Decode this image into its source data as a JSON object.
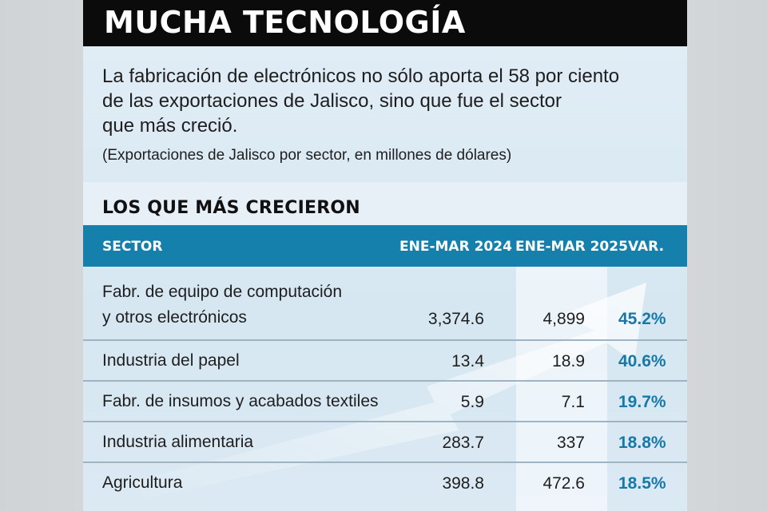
{
  "title": "MUCHA TECNOLOGÍA",
  "intro": {
    "lines": [
      "La fabricación de electrónicos no sólo aporta el 58 por ciento",
      "de las exportaciones de Jalisco, sino que fue el sector",
      "que más creció."
    ],
    "unit_note": "(Exportaciones de Jalisco por sector, en millones de dólares)"
  },
  "section_title": "LOS QUE MÁS CRECIERON",
  "table": {
    "headers": {
      "sector": "SECTOR",
      "col_2024": "ENE-MAR 2024",
      "col_2025": "ENE-MAR 2025",
      "var": "VAR."
    },
    "rows": [
      {
        "sector_line1": "Fabr. de equipo de computación",
        "sector_line2": "y otros electrónicos",
        "v2024": "3,374.6",
        "v2025": "4,899",
        "var": "45.2%"
      },
      {
        "sector_line1": "Industria del papel",
        "v2024": "13.4",
        "v2025": "18.9",
        "var": "40.6%"
      },
      {
        "sector_line1": "Fabr. de insumos y acabados textiles",
        "v2024": "5.9",
        "v2025": "7.1",
        "var": "19.7%"
      },
      {
        "sector_line1": "Industria alimentaria",
        "v2024": "283.7",
        "v2025": "337",
        "var": "18.8%"
      },
      {
        "sector_line1": "Agricultura",
        "v2024": "398.8",
        "v2025": "472.6",
        "var": "18.5%"
      }
    ]
  },
  "colors": {
    "title_bar": "#0b0b0b",
    "header_bar": "#1680ad",
    "var_text": "#1679a6",
    "panel": "#d6e7f2"
  }
}
